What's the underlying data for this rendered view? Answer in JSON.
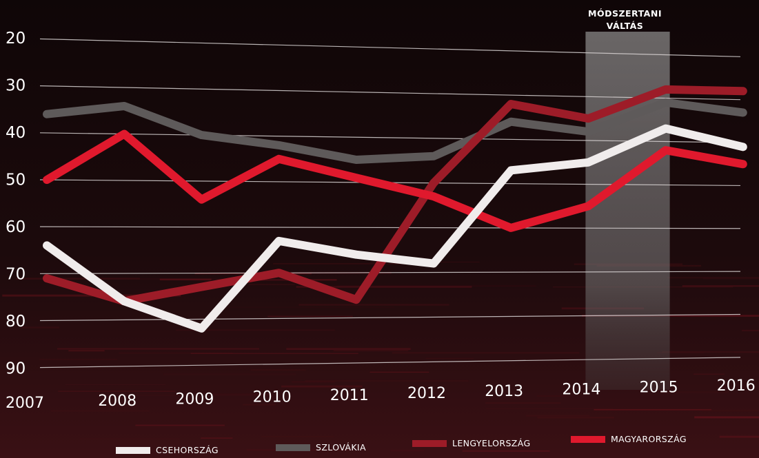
{
  "chart_data": {
    "type": "line",
    "categories": [
      "2007",
      "2008",
      "2009",
      "2010",
      "2011",
      "2012",
      "2013",
      "2014",
      "2015",
      "2016"
    ],
    "y_ticks": [
      "20",
      "30",
      "40",
      "50",
      "60",
      "70",
      "80",
      "90"
    ],
    "ylim": [
      20,
      90
    ],
    "y_inverted": true,
    "grid": true,
    "annotation": {
      "lines": [
        "MÓDSZERTANI",
        "VÁLTÁS"
      ],
      "x_from": "2014",
      "x_to": "2015"
    },
    "series": [
      {
        "name": "CSEHORSZÁG",
        "color": "#f0ecec",
        "values": [
          64,
          76,
          82,
          63,
          66,
          68,
          47,
          45,
          37,
          41
        ]
      },
      {
        "name": "SZLOVÁKIA",
        "color": "#5e5a5a",
        "values": [
          36,
          34,
          40,
          42,
          45,
          44,
          36,
          38,
          31,
          33
        ]
      },
      {
        "name": "LENGYELORSZÁG",
        "color": "#9d1c28",
        "values": [
          71,
          76,
          73,
          70,
          76,
          50,
          32,
          35,
          28,
          28
        ]
      },
      {
        "name": "MAGYARORSZÁG",
        "color": "#e0192d",
        "values": [
          50,
          40,
          54,
          45,
          49,
          53,
          60,
          55,
          42,
          45
        ]
      }
    ],
    "legend_position": "bottom"
  }
}
